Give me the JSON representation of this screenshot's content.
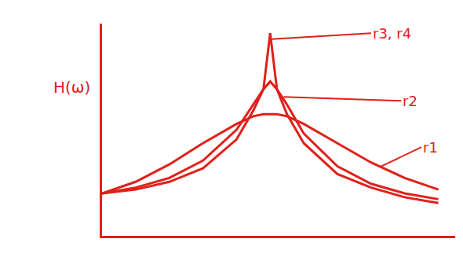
{
  "chart_data": {
    "type": "line",
    "ylabel": "H(ω)",
    "x": [
      0,
      1,
      2,
      3,
      4,
      4.5,
      4.8,
      5,
      5.2,
      5.5,
      6,
      7,
      8,
      9,
      10
    ],
    "series": [
      {
        "name": "r1",
        "color": "#e0201b",
        "values": [
          2.2,
          2.8,
          3.7,
          4.8,
          5.8,
          6.2,
          6.3,
          6.3,
          6.3,
          6.2,
          5.8,
          4.8,
          3.8,
          3.0,
          2.4
        ]
      },
      {
        "name": "r2",
        "color": "#e0201b",
        "values": [
          2.2,
          2.5,
          3.0,
          3.9,
          5.5,
          6.8,
          7.6,
          8.0,
          7.6,
          6.8,
          5.3,
          3.6,
          2.7,
          2.2,
          1.9
        ]
      },
      {
        "name": "r3, r4",
        "color": "#e0201b",
        "values": [
          2.2,
          2.4,
          2.8,
          3.5,
          5.0,
          6.5,
          7.6,
          10.5,
          7.6,
          6.3,
          4.8,
          3.2,
          2.5,
          2.0,
          1.7
        ]
      }
    ],
    "annotations": [
      {
        "text": "r3, r4",
        "x": 8.0,
        "y": 10.5,
        "point": [
          5.05,
          10.2
        ]
      },
      {
        "text": "r2",
        "x": 8.9,
        "y": 7.0,
        "point": [
          5.4,
          7.2
        ]
      },
      {
        "text": "r1",
        "x": 9.5,
        "y": 4.6,
        "point": [
          8.3,
          3.6
        ]
      }
    ],
    "xlim": [
      0,
      10.5
    ],
    "ylim": [
      0,
      11
    ],
    "xticks": [],
    "yticks": [],
    "tick_labels": false,
    "grid": false,
    "color": "#e0201b",
    "line_style": "solid"
  }
}
